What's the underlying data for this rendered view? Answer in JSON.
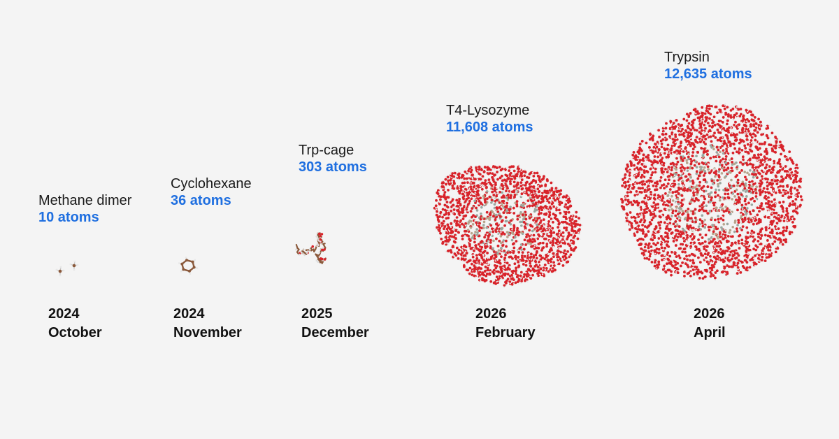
{
  "milestones": [
    {
      "molecule": "Methane dimer",
      "atoms": "10 atoms",
      "year": "2024",
      "month": "October"
    },
    {
      "molecule": "Cyclohexane",
      "atoms": "36 atoms",
      "year": "2024",
      "month": "November"
    },
    {
      "molecule": "Trp-cage",
      "atoms": "303 atoms",
      "year": "2025",
      "month": "December"
    },
    {
      "molecule": "T4-Lysozyme",
      "atoms": "11,608 atoms",
      "year": "2026",
      "month": "February"
    },
    {
      "molecule": "Trypsin",
      "atoms": "12,635 atoms",
      "year": "2026",
      "month": "April"
    }
  ],
  "colors": {
    "background": "#f4f4f4",
    "atom_count": "#1f6fe0",
    "oxygen": "#d8232a",
    "hydrogen": "#e8e8e8",
    "carbon": "#8b5a3c"
  }
}
